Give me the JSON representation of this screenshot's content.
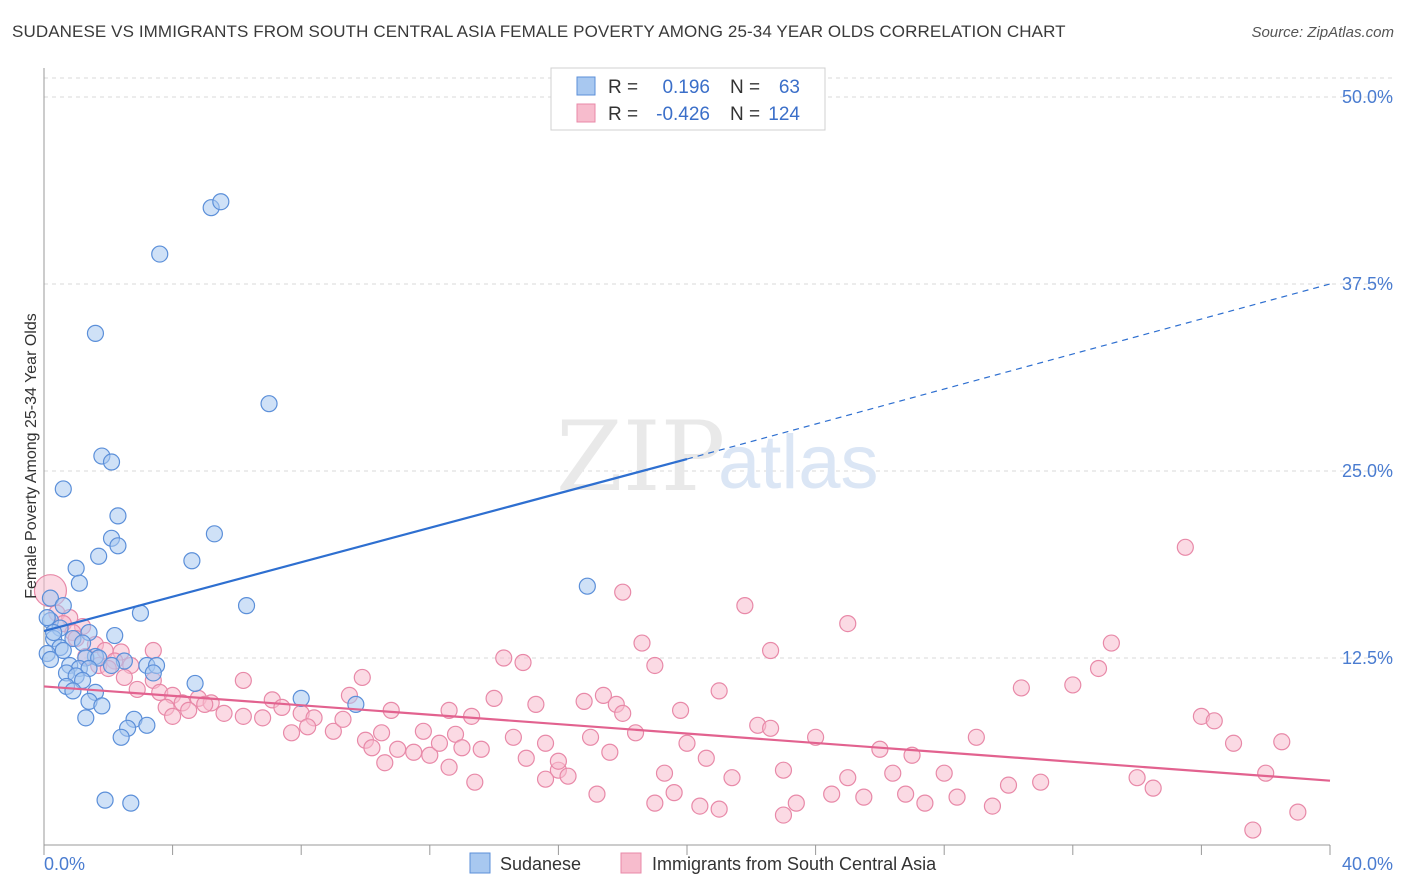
{
  "title": "SUDANESE VS IMMIGRANTS FROM SOUTH CENTRAL ASIA FEMALE POVERTY AMONG 25-34 YEAR OLDS CORRELATION CHART",
  "source": "Source: ZipAtlas.com",
  "watermark": {
    "zip": "ZIP",
    "atlas": "atlas"
  },
  "colors": {
    "blue_fill": "#a8c8f0",
    "blue_stroke": "#5b8fd9",
    "blue_line": "#2e6fd0",
    "pink_fill": "#f7bccd",
    "pink_stroke": "#e889a8",
    "pink_line": "#e2628f",
    "tick_text": "#4a7cd0",
    "grid": "#d8d8d8"
  },
  "legend_box": {
    "rows": [
      {
        "r_label": "R =",
        "r_value": "0.196",
        "n_label": "N =",
        "n_value": "63"
      },
      {
        "r_label": "R =",
        "r_value": "-0.426",
        "n_label": "N =",
        "n_value": "124"
      }
    ]
  },
  "chart_data": {
    "type": "scatter",
    "title": "SUDANESE VS IMMIGRANTS FROM SOUTH CENTRAL ASIA FEMALE POVERTY AMONG 25-34 YEAR OLDS CORRELATION CHART",
    "xlabel": "",
    "ylabel": "Female Poverty Among 25-34 Year Olds",
    "xlim": [
      0,
      40
    ],
    "ylim": [
      0,
      50
    ],
    "x_tick_labels": [
      "0.0%",
      "40.0%"
    ],
    "y_ticks": [
      12.5,
      25,
      37.5,
      50
    ],
    "y_tick_labels": [
      "12.5%",
      "25.0%",
      "37.5%",
      "50.0%"
    ],
    "legend": [
      "Sudanese",
      "Immigrants from South Central Asia"
    ],
    "series": [
      {
        "name": "Sudanese",
        "r": 0.196,
        "n": 63,
        "trend": {
          "x0": 0,
          "y0": 14.3,
          "x1": 20,
          "y1": 25.8,
          "dashed_to_x": 40,
          "dashed_to_y": 37.5
        },
        "points": [
          [
            5.2,
            42.6
          ],
          [
            5.5,
            43.0
          ],
          [
            3.6,
            39.5
          ],
          [
            1.6,
            34.2
          ],
          [
            7.0,
            29.5
          ],
          [
            1.8,
            26.0
          ],
          [
            2.1,
            25.6
          ],
          [
            0.6,
            23.8
          ],
          [
            2.3,
            22.0
          ],
          [
            5.3,
            20.8
          ],
          [
            2.1,
            20.5
          ],
          [
            2.3,
            20.0
          ],
          [
            1.7,
            19.3
          ],
          [
            4.6,
            19.0
          ],
          [
            1.0,
            18.5
          ],
          [
            1.1,
            17.5
          ],
          [
            16.9,
            17.3
          ],
          [
            0.2,
            16.5
          ],
          [
            0.6,
            16.0
          ],
          [
            6.3,
            16.0
          ],
          [
            3.0,
            15.5
          ],
          [
            0.2,
            15.0
          ],
          [
            0.5,
            14.5
          ],
          [
            1.4,
            14.2
          ],
          [
            2.2,
            14.0
          ],
          [
            0.3,
            13.8
          ],
          [
            0.9,
            13.8
          ],
          [
            1.2,
            13.5
          ],
          [
            0.5,
            13.2
          ],
          [
            0.6,
            13.0
          ],
          [
            0.1,
            12.8
          ],
          [
            1.6,
            12.6
          ],
          [
            1.3,
            12.5
          ],
          [
            1.7,
            12.5
          ],
          [
            2.5,
            12.3
          ],
          [
            0.8,
            12.0
          ],
          [
            1.1,
            11.8
          ],
          [
            1.4,
            11.8
          ],
          [
            0.2,
            12.4
          ],
          [
            2.1,
            12.0
          ],
          [
            3.2,
            12.0
          ],
          [
            3.5,
            12.0
          ],
          [
            0.7,
            11.5
          ],
          [
            1.0,
            11.3
          ],
          [
            3.4,
            11.5
          ],
          [
            1.2,
            11.0
          ],
          [
            4.7,
            10.8
          ],
          [
            0.7,
            10.6
          ],
          [
            0.9,
            10.3
          ],
          [
            1.6,
            10.2
          ],
          [
            1.4,
            9.6
          ],
          [
            8.0,
            9.8
          ],
          [
            9.7,
            9.4
          ],
          [
            1.8,
            9.3
          ],
          [
            1.3,
            8.5
          ],
          [
            0.3,
            14.2
          ],
          [
            2.8,
            8.4
          ],
          [
            3.2,
            8.0
          ],
          [
            2.6,
            7.8
          ],
          [
            2.4,
            7.2
          ],
          [
            1.9,
            3.0
          ],
          [
            2.7,
            2.8
          ],
          [
            0.1,
            15.2
          ]
        ]
      },
      {
        "name": "Immigrants from South Central Asia",
        "r": -0.426,
        "n": 124,
        "trend": {
          "x0": 0,
          "y0": 10.6,
          "x1": 40,
          "y1": 4.3
        },
        "points": [
          [
            0.2,
            17.0
          ],
          [
            0.4,
            15.5
          ],
          [
            0.8,
            15.2
          ],
          [
            0.6,
            14.8
          ],
          [
            1.2,
            14.6
          ],
          [
            0.9,
            14.2
          ],
          [
            1.6,
            13.4
          ],
          [
            1.9,
            13.0
          ],
          [
            2.4,
            12.9
          ],
          [
            1.3,
            12.6
          ],
          [
            2.2,
            12.3
          ],
          [
            1.7,
            12.0
          ],
          [
            2.7,
            12.0
          ],
          [
            2.5,
            11.2
          ],
          [
            3.4,
            11.0
          ],
          [
            2.9,
            10.4
          ],
          [
            3.6,
            10.2
          ],
          [
            4.0,
            10.0
          ],
          [
            4.8,
            9.8
          ],
          [
            4.3,
            9.5
          ],
          [
            5.2,
            9.5
          ],
          [
            3.8,
            9.2
          ],
          [
            4.5,
            9.0
          ],
          [
            5.6,
            8.8
          ],
          [
            6.2,
            8.6
          ],
          [
            6.8,
            8.5
          ],
          [
            7.1,
            9.7
          ],
          [
            7.4,
            9.2
          ],
          [
            8.0,
            8.8
          ],
          [
            8.4,
            8.5
          ],
          [
            8.2,
            7.9
          ],
          [
            7.7,
            7.5
          ],
          [
            9.0,
            7.6
          ],
          [
            9.3,
            8.4
          ],
          [
            9.5,
            10.0
          ],
          [
            10.0,
            7.0
          ],
          [
            10.5,
            7.5
          ],
          [
            10.2,
            6.5
          ],
          [
            10.8,
            9.0
          ],
          [
            11.0,
            6.4
          ],
          [
            11.5,
            6.2
          ],
          [
            11.8,
            7.6
          ],
          [
            12.0,
            6.0
          ],
          [
            12.3,
            6.8
          ],
          [
            12.6,
            9.0
          ],
          [
            12.8,
            7.4
          ],
          [
            13.0,
            6.5
          ],
          [
            13.3,
            8.6
          ],
          [
            13.6,
            6.4
          ],
          [
            14.0,
            9.8
          ],
          [
            14.3,
            12.5
          ],
          [
            14.6,
            7.2
          ],
          [
            15.0,
            5.8
          ],
          [
            15.3,
            9.4
          ],
          [
            15.6,
            6.8
          ],
          [
            16.0,
            5.0
          ],
          [
            16.3,
            4.6
          ],
          [
            16.8,
            9.6
          ],
          [
            17.0,
            7.2
          ],
          [
            17.4,
            10.0
          ],
          [
            17.8,
            9.4
          ],
          [
            17.6,
            6.2
          ],
          [
            18.0,
            8.8
          ],
          [
            18.4,
            7.5
          ],
          [
            18.6,
            13.5
          ],
          [
            19.0,
            12.0
          ],
          [
            19.3,
            4.8
          ],
          [
            19.6,
            3.5
          ],
          [
            19.8,
            9.0
          ],
          [
            20.0,
            6.8
          ],
          [
            20.4,
            2.6
          ],
          [
            20.6,
            5.8
          ],
          [
            21.0,
            10.3
          ],
          [
            21.4,
            4.5
          ],
          [
            21.8,
            16.0
          ],
          [
            22.2,
            8.0
          ],
          [
            22.6,
            7.8
          ],
          [
            23.0,
            5.0
          ],
          [
            23.4,
            2.8
          ],
          [
            24.0,
            7.2
          ],
          [
            24.5,
            3.4
          ],
          [
            25.0,
            4.5
          ],
          [
            25.5,
            3.2
          ],
          [
            26.0,
            6.4
          ],
          [
            26.4,
            4.8
          ],
          [
            27.0,
            6.0
          ],
          [
            27.4,
            2.8
          ],
          [
            28.0,
            4.8
          ],
          [
            28.4,
            3.2
          ],
          [
            29.0,
            7.2
          ],
          [
            29.5,
            2.6
          ],
          [
            30.0,
            4.0
          ],
          [
            31.0,
            4.2
          ],
          [
            32.0,
            10.7
          ],
          [
            32.8,
            11.8
          ],
          [
            34.0,
            4.5
          ],
          [
            34.5,
            3.8
          ],
          [
            36.0,
            8.6
          ],
          [
            36.4,
            8.3
          ],
          [
            37.0,
            6.8
          ],
          [
            38.0,
            4.8
          ],
          [
            38.5,
            6.9
          ],
          [
            39.0,
            2.2
          ],
          [
            37.6,
            1.0
          ],
          [
            30.4,
            10.5
          ],
          [
            14.9,
            12.2
          ],
          [
            16.0,
            5.6
          ],
          [
            18.0,
            16.9
          ],
          [
            22.6,
            13.0
          ],
          [
            25.0,
            14.8
          ],
          [
            33.2,
            13.5
          ],
          [
            35.5,
            19.9
          ],
          [
            9.9,
            11.2
          ],
          [
            6.2,
            11.0
          ],
          [
            3.4,
            13.0
          ],
          [
            5.0,
            9.4
          ],
          [
            4.0,
            8.6
          ],
          [
            2.0,
            11.8
          ],
          [
            1.0,
            13.8
          ],
          [
            10.6,
            5.5
          ],
          [
            12.6,
            5.2
          ],
          [
            13.4,
            4.2
          ],
          [
            15.6,
            4.4
          ],
          [
            17.2,
            3.4
          ],
          [
            19.0,
            2.8
          ],
          [
            21.0,
            2.4
          ],
          [
            23.0,
            2.0
          ],
          [
            26.8,
            3.4
          ]
        ]
      }
    ]
  }
}
